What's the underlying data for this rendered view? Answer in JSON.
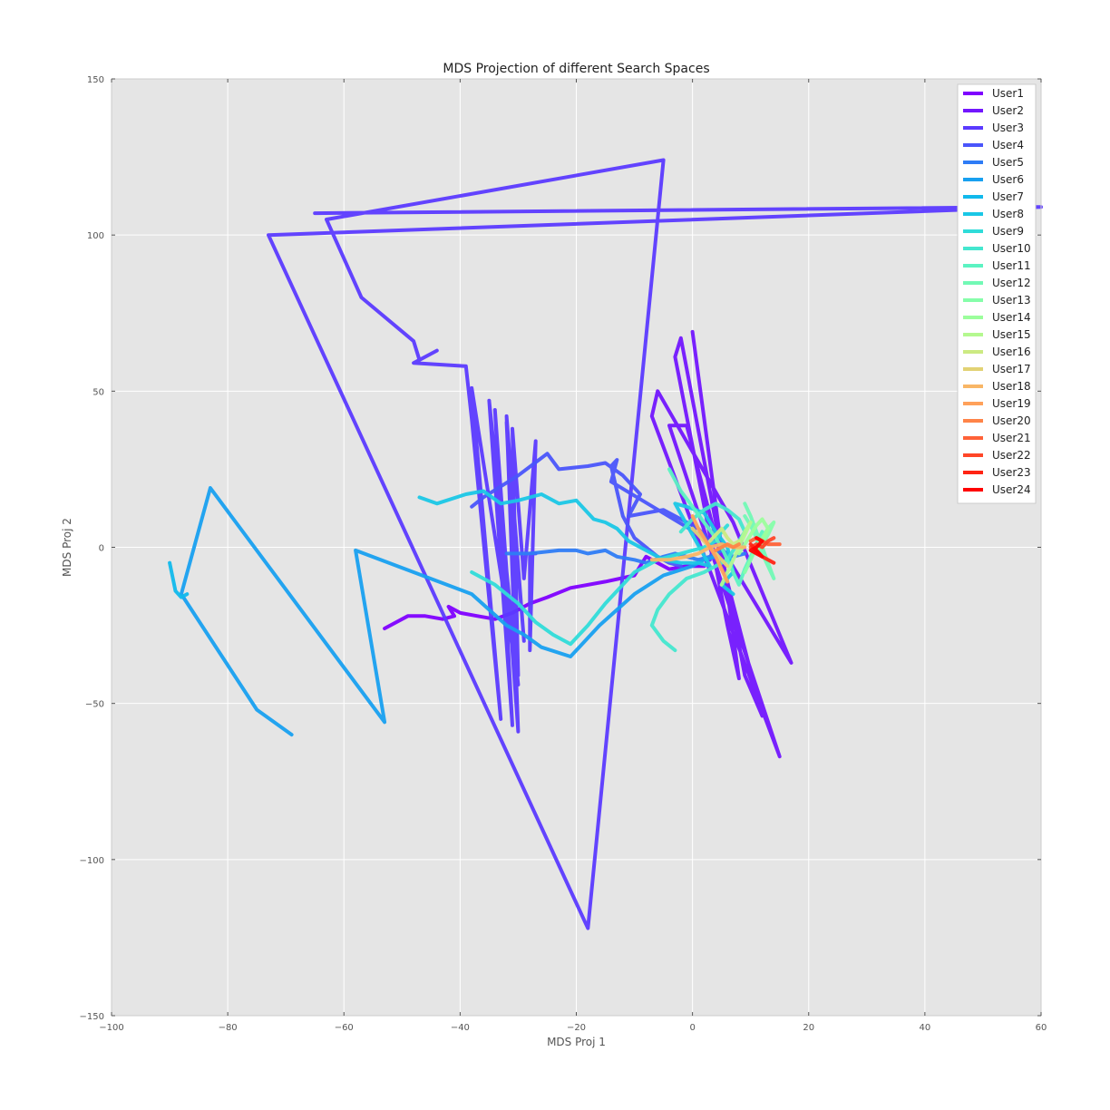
{
  "chart_data": {
    "type": "line",
    "title": "MDS Projection of different Search Spaces",
    "xlabel": "MDS Proj 1",
    "ylabel": "MDS Proj 2",
    "xlim": [
      -100,
      60
    ],
    "ylim": [
      -150,
      150
    ],
    "xticks": [
      -100,
      -80,
      -60,
      -40,
      -20,
      0,
      20,
      40,
      60
    ],
    "yticks": [
      -150,
      -100,
      -50,
      0,
      50,
      100,
      150
    ],
    "grid": true,
    "legend_position": "top-right",
    "background": "#e5e5e5",
    "series": [
      {
        "name": "User1",
        "color": "#7f00ff",
        "points": [
          [
            -53,
            -26
          ],
          [
            -49,
            -22
          ],
          [
            -46,
            -22
          ],
          [
            -43,
            -23
          ],
          [
            -41,
            -22
          ],
          [
            -42,
            -19
          ],
          [
            -40,
            -21
          ],
          [
            -37,
            -22
          ],
          [
            -34,
            -23
          ],
          [
            -31,
            -21
          ],
          [
            -28,
            -18
          ],
          [
            -25,
            -16
          ],
          [
            -21,
            -13
          ],
          [
            -15,
            -11
          ],
          [
            -10,
            -9
          ],
          [
            -8,
            -3
          ],
          [
            -6,
            -5
          ],
          [
            -4,
            -7
          ],
          [
            -1,
            -6
          ],
          [
            2,
            -6
          ]
        ]
      },
      {
        "name": "User2",
        "color": "#7216fe",
        "points": [
          [
            0,
            69
          ],
          [
            8,
            -42
          ],
          [
            6,
            -25
          ],
          [
            -3,
            61
          ],
          [
            -2,
            67
          ],
          [
            9,
            -41
          ],
          [
            12,
            -54
          ],
          [
            -1,
            39
          ],
          [
            -4,
            39
          ],
          [
            15,
            -67
          ],
          [
            -7,
            42
          ],
          [
            -6,
            50
          ],
          [
            7,
            8
          ],
          [
            11,
            -10
          ],
          [
            17,
            -37
          ],
          [
            4,
            3
          ],
          [
            3,
            -4
          ]
        ]
      },
      {
        "name": "User3",
        "color": "#5b3aff",
        "points": [
          [
            -65,
            107
          ],
          [
            60,
            109
          ],
          [
            -73,
            100
          ],
          [
            -18,
            -122
          ],
          [
            -5,
            124
          ],
          [
            -63,
            105
          ],
          [
            -57,
            80
          ],
          [
            -48,
            66
          ],
          [
            -47,
            60
          ],
          [
            -44,
            63
          ],
          [
            -48,
            59
          ],
          [
            -39,
            58
          ],
          [
            -38,
            41
          ],
          [
            -33,
            -55
          ],
          [
            -38,
            51
          ],
          [
            -30,
            -44
          ],
          [
            -35,
            47
          ],
          [
            -31,
            -57
          ],
          [
            -34,
            44
          ],
          [
            -30,
            -59
          ],
          [
            -32,
            42
          ],
          [
            -29,
            -30
          ],
          [
            -32,
            40
          ],
          [
            -30,
            -41
          ],
          [
            -31,
            38
          ],
          [
            -29,
            -10
          ],
          [
            -27,
            34
          ],
          [
            -28,
            -33
          ],
          [
            -28,
            -2
          ],
          [
            -27,
            -2
          ]
        ]
      },
      {
        "name": "User4",
        "color": "#4a55fb",
        "points": [
          [
            -38,
            13
          ],
          [
            -36,
            16
          ],
          [
            -30,
            23
          ],
          [
            -25,
            30
          ],
          [
            -23,
            25
          ],
          [
            -18,
            26
          ],
          [
            -15,
            27
          ],
          [
            -12,
            23
          ],
          [
            -9,
            17
          ],
          [
            -11,
            10
          ],
          [
            -8,
            11
          ],
          [
            -5,
            12
          ],
          [
            -2,
            9
          ],
          [
            1,
            6
          ],
          [
            3,
            2
          ],
          [
            -14,
            21
          ],
          [
            -13,
            28
          ],
          [
            -14,
            26
          ],
          [
            -12,
            10
          ],
          [
            -10,
            3
          ],
          [
            -6,
            -3
          ],
          [
            -4,
            -5
          ],
          [
            -2,
            -6
          ]
        ]
      },
      {
        "name": "User5",
        "color": "#2e7cf6",
        "points": [
          [
            -32,
            -2
          ],
          [
            -28,
            -2
          ],
          [
            -23,
            -1
          ],
          [
            -20,
            -1
          ],
          [
            -18,
            -2
          ],
          [
            -15,
            -1
          ],
          [
            -13,
            -3
          ],
          [
            -10,
            -4
          ],
          [
            -8,
            -5
          ],
          [
            -5,
            -3
          ],
          [
            -3,
            -2
          ],
          [
            -1,
            -3
          ],
          [
            1,
            -4
          ],
          [
            3,
            -3
          ],
          [
            5,
            -1
          ],
          [
            7,
            -3
          ],
          [
            9,
            -2
          ]
        ]
      },
      {
        "name": "User6",
        "color": "#18a0f0",
        "points": [
          [
            -69,
            -60
          ],
          [
            -75,
            -52
          ],
          [
            -88,
            -15
          ],
          [
            -83,
            19
          ],
          [
            -53,
            -56
          ],
          [
            -58,
            -1
          ],
          [
            -38,
            -15
          ],
          [
            -32,
            -25
          ],
          [
            -29,
            -28
          ],
          [
            -26,
            -32
          ],
          [
            -21,
            -35
          ],
          [
            -16,
            -25
          ],
          [
            -10,
            -15
          ],
          [
            -5,
            -9
          ],
          [
            0,
            -6
          ],
          [
            2,
            -4
          ],
          [
            4,
            -3
          ]
        ]
      },
      {
        "name": "User7",
        "color": "#11b9ec",
        "points": [
          [
            -90,
            -5
          ],
          [
            -89,
            -14
          ],
          [
            -88,
            -16
          ],
          [
            -87,
            -15
          ]
        ]
      },
      {
        "name": "User8",
        "color": "#1ac7e6",
        "points": [
          [
            -47,
            16
          ],
          [
            -44,
            14
          ],
          [
            -39,
            17
          ],
          [
            -36,
            18
          ],
          [
            -33,
            14
          ],
          [
            -30,
            15
          ],
          [
            -26,
            17
          ],
          [
            -23,
            14
          ],
          [
            -20,
            15
          ],
          [
            -17,
            9
          ],
          [
            -15,
            8
          ],
          [
            -13,
            6
          ],
          [
            -11,
            2
          ],
          [
            -8,
            -1
          ],
          [
            -5,
            -4
          ],
          [
            -2,
            -5
          ],
          [
            1,
            -5
          ],
          [
            3,
            -6
          ],
          [
            -3,
            14
          ],
          [
            -1,
            13
          ],
          [
            2,
            11
          ],
          [
            4,
            5
          ],
          [
            6,
            0
          ],
          [
            7,
            -8
          ],
          [
            5,
            -12
          ],
          [
            7,
            -15
          ]
        ]
      },
      {
        "name": "User9",
        "color": "#2fdcd9",
        "points": [
          [
            -38,
            -8
          ],
          [
            -34,
            -12
          ],
          [
            -30,
            -18
          ],
          [
            -27,
            -24
          ],
          [
            -24,
            -28
          ],
          [
            -21,
            -31
          ],
          [
            -18,
            -25
          ],
          [
            -15,
            -18
          ],
          [
            -12,
            -12
          ],
          [
            -10,
            -8
          ],
          [
            -8,
            -6
          ],
          [
            -6,
            -4
          ],
          [
            -4,
            -3
          ],
          [
            -2,
            -2
          ],
          [
            0,
            -1
          ],
          [
            2,
            0
          ],
          [
            4,
            2
          ],
          [
            5,
            5
          ],
          [
            6,
            7
          ]
        ]
      },
      {
        "name": "User10",
        "color": "#44e7cf",
        "points": [
          [
            -3,
            -33
          ],
          [
            -5,
            -30
          ],
          [
            -7,
            -25
          ],
          [
            -6,
            -20
          ],
          [
            -4,
            -15
          ],
          [
            -1,
            -10
          ],
          [
            2,
            -8
          ],
          [
            4,
            -6
          ],
          [
            6,
            -4
          ],
          [
            7,
            -1
          ],
          [
            8,
            2
          ],
          [
            9,
            5
          ],
          [
            8,
            9
          ],
          [
            6,
            12
          ],
          [
            4,
            14
          ],
          [
            2,
            12
          ],
          [
            0,
            9
          ],
          [
            -2,
            5
          ]
        ]
      },
      {
        "name": "User11",
        "color": "#5cf3c2",
        "points": [
          [
            -4,
            25
          ],
          [
            -2,
            18
          ],
          [
            0,
            13
          ],
          [
            2,
            8
          ],
          [
            4,
            3
          ],
          [
            5,
            0
          ],
          [
            6,
            -4
          ],
          [
            7,
            -8
          ],
          [
            8,
            -12
          ],
          [
            9,
            -7
          ],
          [
            10,
            -3
          ],
          [
            11,
            1
          ],
          [
            12,
            5
          ]
        ]
      },
      {
        "name": "User12",
        "color": "#72f9b5",
        "points": [
          [
            9,
            14
          ],
          [
            10,
            10
          ],
          [
            11,
            5
          ],
          [
            12,
            0
          ],
          [
            13,
            -5
          ],
          [
            14,
            -10
          ],
          [
            13,
            -6
          ],
          [
            12,
            -2
          ],
          [
            11,
            3
          ],
          [
            10,
            7
          ],
          [
            9,
            10
          ]
        ]
      },
      {
        "name": "User13",
        "color": "#86feaa",
        "points": [
          [
            9,
            -8
          ],
          [
            10,
            -4
          ],
          [
            11,
            0
          ],
          [
            12,
            3
          ],
          [
            13,
            6
          ],
          [
            14,
            8
          ],
          [
            13,
            4
          ],
          [
            12,
            1
          ],
          [
            11,
            -2
          ]
        ]
      },
      {
        "name": "User14",
        "color": "#9cfe9c",
        "points": [
          [
            8,
            -2
          ],
          [
            9,
            1
          ],
          [
            10,
            4
          ],
          [
            11,
            7
          ],
          [
            12,
            9
          ],
          [
            13,
            6
          ],
          [
            12,
            2
          ],
          [
            11,
            -1
          ]
        ]
      },
      {
        "name": "User15",
        "color": "#b4f88f",
        "points": [
          [
            5,
            -12
          ],
          [
            6,
            -8
          ],
          [
            7,
            -4
          ],
          [
            8,
            0
          ],
          [
            9,
            4
          ],
          [
            10,
            8
          ],
          [
            9,
            5
          ],
          [
            8,
            1
          ]
        ]
      },
      {
        "name": "User16",
        "color": "#ccea82",
        "points": [
          [
            3,
            2
          ],
          [
            4,
            4
          ],
          [
            5,
            6
          ],
          [
            6,
            3
          ],
          [
            7,
            1
          ],
          [
            8,
            2
          ]
        ]
      },
      {
        "name": "User17",
        "color": "#e2d274",
        "points": [
          [
            0,
            6
          ],
          [
            1,
            4
          ],
          [
            2,
            2
          ],
          [
            3,
            0
          ],
          [
            4,
            -2
          ],
          [
            5,
            -4
          ],
          [
            6,
            -6
          ]
        ]
      },
      {
        "name": "User18",
        "color": "#f8b666",
        "points": [
          [
            -7,
            -4
          ],
          [
            -4,
            -4
          ],
          [
            -1,
            -3
          ],
          [
            1,
            -2
          ],
          [
            3,
            0
          ],
          [
            5,
            1
          ],
          [
            7,
            0
          ],
          [
            9,
            0
          ]
        ]
      },
      {
        "name": "User19",
        "color": "#ffa15a",
        "points": [
          [
            0,
            10
          ],
          [
            1,
            6
          ],
          [
            2,
            3
          ],
          [
            3,
            0
          ],
          [
            4,
            -3
          ],
          [
            5,
            -7
          ],
          [
            6,
            -11
          ]
        ]
      },
      {
        "name": "User20",
        "color": "#ff8448",
        "points": [
          [
            4,
            -1
          ],
          [
            5,
            0
          ],
          [
            6,
            1
          ],
          [
            7,
            0
          ],
          [
            8,
            1
          ]
        ]
      },
      {
        "name": "User21",
        "color": "#ff6238",
        "points": [
          [
            10,
            2
          ],
          [
            11,
            3
          ],
          [
            12,
            2
          ],
          [
            13,
            1
          ],
          [
            14,
            1
          ],
          [
            15,
            1
          ]
        ]
      },
      {
        "name": "User22",
        "color": "#ff4628",
        "points": [
          [
            10,
            0
          ],
          [
            11,
            1
          ],
          [
            12,
            0
          ],
          [
            13,
            2
          ],
          [
            14,
            3
          ]
        ]
      },
      {
        "name": "User23",
        "color": "#ff2414",
        "points": [
          [
            10,
            1
          ],
          [
            11,
            -1
          ],
          [
            12,
            -3
          ],
          [
            13,
            -4
          ],
          [
            14,
            -5
          ]
        ]
      },
      {
        "name": "User24",
        "color": "#ff0000",
        "points": [
          [
            11,
            3
          ],
          [
            12,
            2
          ],
          [
            11,
            0
          ],
          [
            10,
            -1
          ],
          [
            11,
            -2
          ],
          [
            12,
            -3
          ],
          [
            11,
            -1
          ]
        ]
      }
    ]
  }
}
